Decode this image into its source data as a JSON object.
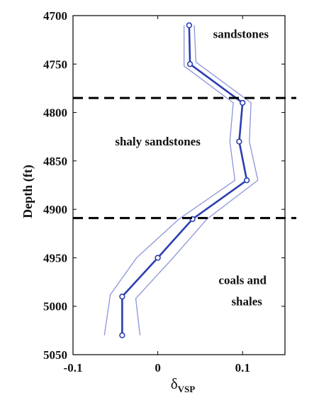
{
  "chart_data": {
    "type": "line",
    "xlabel_main": "δ",
    "xlabel_sub": "VSP",
    "ylabel": "Depth (ft)",
    "xlim": [
      -0.1,
      0.15
    ],
    "ylim": [
      4700,
      5050
    ],
    "y_inverted": true,
    "xticks": [
      -0.1,
      0,
      0.1
    ],
    "xtick_labels": [
      "-0.1",
      "0",
      "0.1"
    ],
    "yticks": [
      4700,
      4750,
      4800,
      4850,
      4900,
      4950,
      5000,
      5050
    ],
    "ytick_labels": [
      "4700",
      "4750",
      "4800",
      "4850",
      "4900",
      "4950",
      "5000",
      "5050"
    ],
    "series": [
      {
        "color": "#2b3fb0",
        "marker": "circle",
        "points": [
          {
            "x": 0.037,
            "y": 4710
          },
          {
            "x": 0.038,
            "y": 4750
          },
          {
            "x": 0.1,
            "y": 4790
          },
          {
            "x": 0.096,
            "y": 4830
          },
          {
            "x": 0.105,
            "y": 4870
          },
          {
            "x": 0.041,
            "y": 4910
          },
          {
            "x": 0.0,
            "y": 4950
          },
          {
            "x": -0.042,
            "y": 4990
          },
          {
            "x": -0.042,
            "y": 5030
          }
        ]
      }
    ],
    "bounds": [
      {
        "color": "#8b94d8",
        "points": [
          {
            "x": 0.031,
            "y": 4710
          },
          {
            "x": 0.031,
            "y": 4752
          },
          {
            "x": 0.089,
            "y": 4790
          },
          {
            "x": 0.085,
            "y": 4830
          },
          {
            "x": 0.091,
            "y": 4870
          },
          {
            "x": 0.025,
            "y": 4910
          },
          {
            "x": -0.025,
            "y": 4950
          },
          {
            "x": -0.056,
            "y": 4988
          },
          {
            "x": -0.063,
            "y": 5030
          }
        ]
      },
      {
        "color": "#8b94d8",
        "points": [
          {
            "x": 0.043,
            "y": 4710
          },
          {
            "x": 0.045,
            "y": 4748
          },
          {
            "x": 0.11,
            "y": 4790
          },
          {
            "x": 0.108,
            "y": 4830
          },
          {
            "x": 0.118,
            "y": 4870
          },
          {
            "x": 0.058,
            "y": 4910
          },
          {
            "x": 0.018,
            "y": 4950
          },
          {
            "x": -0.026,
            "y": 4992
          },
          {
            "x": -0.021,
            "y": 5030
          }
        ]
      }
    ],
    "boundaries": [
      {
        "y": 4785,
        "style": "dashed",
        "color": "#000000"
      },
      {
        "y": 4909,
        "style": "dashed",
        "color": "#000000"
      }
    ],
    "annotations": [
      {
        "key": "sandstones",
        "text": "sandstones",
        "x": 0.098,
        "y": 4723
      },
      {
        "key": "shaly",
        "text": "shaly sandstones",
        "x": 0.0,
        "y": 4834
      },
      {
        "key": "coals1",
        "text": "coals and",
        "x": 0.1,
        "y": 4977
      },
      {
        "key": "coals2",
        "text": "shales",
        "x": 0.105,
        "y": 4999
      }
    ]
  }
}
